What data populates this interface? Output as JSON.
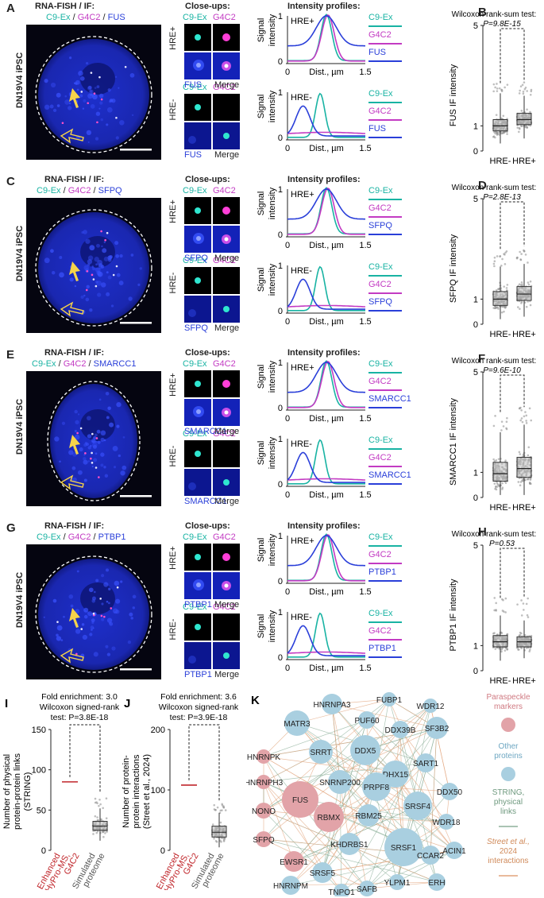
{
  "rows": [
    {
      "letter": "A",
      "box_letter": "B",
      "header_lines": [
        "RNA-FISH / IF:"
      ],
      "legend_inline": [
        "C9-Ex",
        "G4C2",
        "FUS"
      ],
      "cell_line": "DN19V4 iPSC",
      "protein": "FUS",
      "stat_title": "Wilcoxon rank-sum test:",
      "p_value": "P=9.8E-15",
      "ylabel": "FUS IF intensity",
      "median_neg": 1.0,
      "median_pos": 1.25,
      "q1_neg": 0.8,
      "q3_neg": 1.25,
      "q1_pos": 1.05,
      "q3_pos": 1.5,
      "wl_neg": 0.3,
      "wh_neg": 2.3,
      "wl_pos": 0.5,
      "wh_pos": 2.2,
      "max_neg": 2.7,
      "max_pos": 2.8
    },
    {
      "letter": "C",
      "box_letter": "D",
      "header_lines": [
        "RNA-FISH / IF:"
      ],
      "legend_inline": [
        "C9-Ex",
        "G4C2",
        "SFPQ"
      ],
      "cell_line": "DN19V4 iPSC",
      "protein": "SFPQ",
      "stat_title": "Wilcoxon rank-sum test:",
      "p_value": "P=2.8E-13",
      "ylabel": "SFPQ IF intensity",
      "median_neg": 1.0,
      "median_pos": 1.2,
      "q1_neg": 0.75,
      "q3_neg": 1.3,
      "q1_pos": 0.95,
      "q3_pos": 1.5,
      "wl_neg": 0.2,
      "wh_neg": 2.3,
      "wl_pos": 0.3,
      "wh_pos": 2.4,
      "max_neg": 3.0,
      "max_pos": 3.1
    },
    {
      "letter": "E",
      "box_letter": "F",
      "header_lines": [
        "RNA-FISH / IF:"
      ],
      "legend_inline": [
        "C9-Ex",
        "G4C2",
        "SMARCC1"
      ],
      "cell_line": "DN19V4 iPSC",
      "protein": "SMARCC1",
      "stat_title": "Wilcoxon rank-sum test:",
      "p_value": "P=9.6E-10",
      "ylabel": "SMARCC1 IF intensity",
      "median_neg": 0.95,
      "median_pos": 1.15,
      "q1_neg": 0.65,
      "q3_neg": 1.4,
      "q1_pos": 0.8,
      "q3_pos": 1.6,
      "wl_neg": 0.1,
      "wh_neg": 2.6,
      "wl_pos": 0.1,
      "wh_pos": 2.9,
      "max_neg": 3.4,
      "max_pos": 3.6
    },
    {
      "letter": "G",
      "box_letter": "H",
      "header_lines": [
        "RNA-FISH / IF:"
      ],
      "legend_inline": [
        "C9-Ex",
        "G4C2",
        "PTBP1"
      ],
      "cell_line": "DN19V4 iPSC",
      "protein": "PTBP1",
      "stat_title": "Wilcoxon rank-sum test:",
      "p_value": "P=0.53",
      "ylabel": "PTBP1 IF intensity",
      "median_neg": 1.15,
      "median_pos": 1.15,
      "q1_neg": 0.95,
      "q3_neg": 1.4,
      "q1_pos": 0.95,
      "q3_pos": 1.35,
      "wl_neg": 0.4,
      "wh_neg": 2.2,
      "wl_pos": 0.5,
      "wh_pos": 2.0,
      "max_neg": 2.9,
      "max_pos": 2.9
    }
  ],
  "common": {
    "closeups_title": "Close-ups:",
    "profiles_title": "Intensity profiles:",
    "hre_pos": "HRE+",
    "hre_neg": "HRE-",
    "c9ex": "C9-Ex",
    "g4c2": "G4C2",
    "merge": "Merge",
    "signal_intensity_1": "Signal",
    "signal_intensity_2": "intensity",
    "dist_label": "Dist., µm",
    "x_ticks": [
      "0",
      "1.5"
    ],
    "y_ticks": [
      "0",
      "1"
    ],
    "box_y_ticks": [
      "0",
      "1",
      "5"
    ],
    "box_x_labels": [
      "HRE-",
      "HRE+"
    ],
    "colors": {
      "cyan": "#19b3a3",
      "magenta": "#c33bc3",
      "blue": "#2a3fd9",
      "red": "#c0262b"
    }
  },
  "panel_I": {
    "letter": "I",
    "title_lines": [
      "Fold enrichment: 3.0",
      "Wilcoxon signed-rank",
      "test: P=3.8E-18"
    ],
    "ylabel_lines": [
      "Number of physical",
      "protein-protein links",
      "(STRING)"
    ],
    "y_ticks": [
      "0",
      "50",
      "100",
      "150"
    ],
    "x_labels": [
      [
        "Enhanced",
        "HyPro-MS,",
        "G4C2"
      ],
      [
        "Simulated",
        "proteome"
      ]
    ],
    "enhanced_value": 85,
    "sim_median": 30,
    "sim_q1": 25,
    "sim_q3": 36,
    "sim_wl": 12,
    "sim_wh": 52
  },
  "panel_J": {
    "letter": "J",
    "title_lines": [
      "Fold enrichment: 3.6",
      "Wilcoxon signed-rank",
      "test: P=3.9E-18"
    ],
    "ylabel_lines": [
      "Number of protein-",
      "protein interactions",
      "(Street et al., 2024)"
    ],
    "y_ticks": [
      "0",
      "100",
      "200"
    ],
    "x_labels": [
      [
        "Enhanced",
        "HyPro-MS,",
        "G4C2"
      ],
      [
        "Simulated",
        "proteome"
      ]
    ],
    "enhanced_value": 108,
    "sim_median": 30,
    "sim_q1": 22,
    "sim_q3": 40,
    "sim_wl": 5,
    "sim_wh": 62
  },
  "panel_K": {
    "letter": "K",
    "legend": {
      "paraspeckle": [
        "Paraspeckle",
        "markers"
      ],
      "other": [
        "Other",
        "proteins"
      ],
      "string": [
        "STRING,",
        "physical",
        "links"
      ],
      "street": [
        "Street et al.,",
        "2024",
        "interactions"
      ]
    },
    "nodes": [
      {
        "id": "HNRNPA3",
        "cat": "other",
        "r": 13
      },
      {
        "id": "FUBP1",
        "cat": "other",
        "r": 9
      },
      {
        "id": "WDR12",
        "cat": "other",
        "r": 9
      },
      {
        "id": "MATR3",
        "cat": "other",
        "r": 16
      },
      {
        "id": "PUF60",
        "cat": "other",
        "r": 11
      },
      {
        "id": "DDX39B",
        "cat": "other",
        "r": 11
      },
      {
        "id": "SF3B2",
        "cat": "other",
        "r": 14
      },
      {
        "id": "HNRNPK",
        "cat": "para",
        "r": 9
      },
      {
        "id": "SRRT",
        "cat": "other",
        "r": 15
      },
      {
        "id": "DDX5",
        "cat": "other",
        "r": 19
      },
      {
        "id": "SART1",
        "cat": "other",
        "r": 12
      },
      {
        "id": "HNRNPH3",
        "cat": "para",
        "r": 9
      },
      {
        "id": "DHX15",
        "cat": "other",
        "r": 17
      },
      {
        "id": "FUS",
        "cat": "para",
        "r": 23
      },
      {
        "id": "SNRNP200",
        "cat": "other",
        "r": 15
      },
      {
        "id": "PRPF8",
        "cat": "other",
        "r": 18
      },
      {
        "id": "DDX50",
        "cat": "other",
        "r": 11
      },
      {
        "id": "NONO",
        "cat": "para",
        "r": 10
      },
      {
        "id": "RBMX",
        "cat": "para",
        "r": 19
      },
      {
        "id": "RBM25",
        "cat": "other",
        "r": 14
      },
      {
        "id": "SRSF4",
        "cat": "other",
        "r": 18
      },
      {
        "id": "WDR18",
        "cat": "other",
        "r": 10
      },
      {
        "id": "SFPQ",
        "cat": "para",
        "r": 10
      },
      {
        "id": "KHDRBS1",
        "cat": "other",
        "r": 14
      },
      {
        "id": "SRSF1",
        "cat": "other",
        "r": 24
      },
      {
        "id": "CCAR2",
        "cat": "other",
        "r": 12
      },
      {
        "id": "ACIN1",
        "cat": "other",
        "r": 11
      },
      {
        "id": "EWSR1",
        "cat": "para",
        "r": 13
      },
      {
        "id": "SRSF5",
        "cat": "other",
        "r": 13
      },
      {
        "id": "ERH",
        "cat": "other",
        "r": 11
      },
      {
        "id": "YLPM1",
        "cat": "other",
        "r": 10
      },
      {
        "id": "HNRNPM",
        "cat": "other",
        "r": 12
      },
      {
        "id": "SAFB",
        "cat": "other",
        "r": 10
      },
      {
        "id": "TNPO1",
        "cat": "other",
        "r": 10
      }
    ],
    "colors": {
      "para": "#e2a3a8",
      "other": "#a9cfe0",
      "string": "#8db09a",
      "street": "#e2a47c"
    }
  }
}
